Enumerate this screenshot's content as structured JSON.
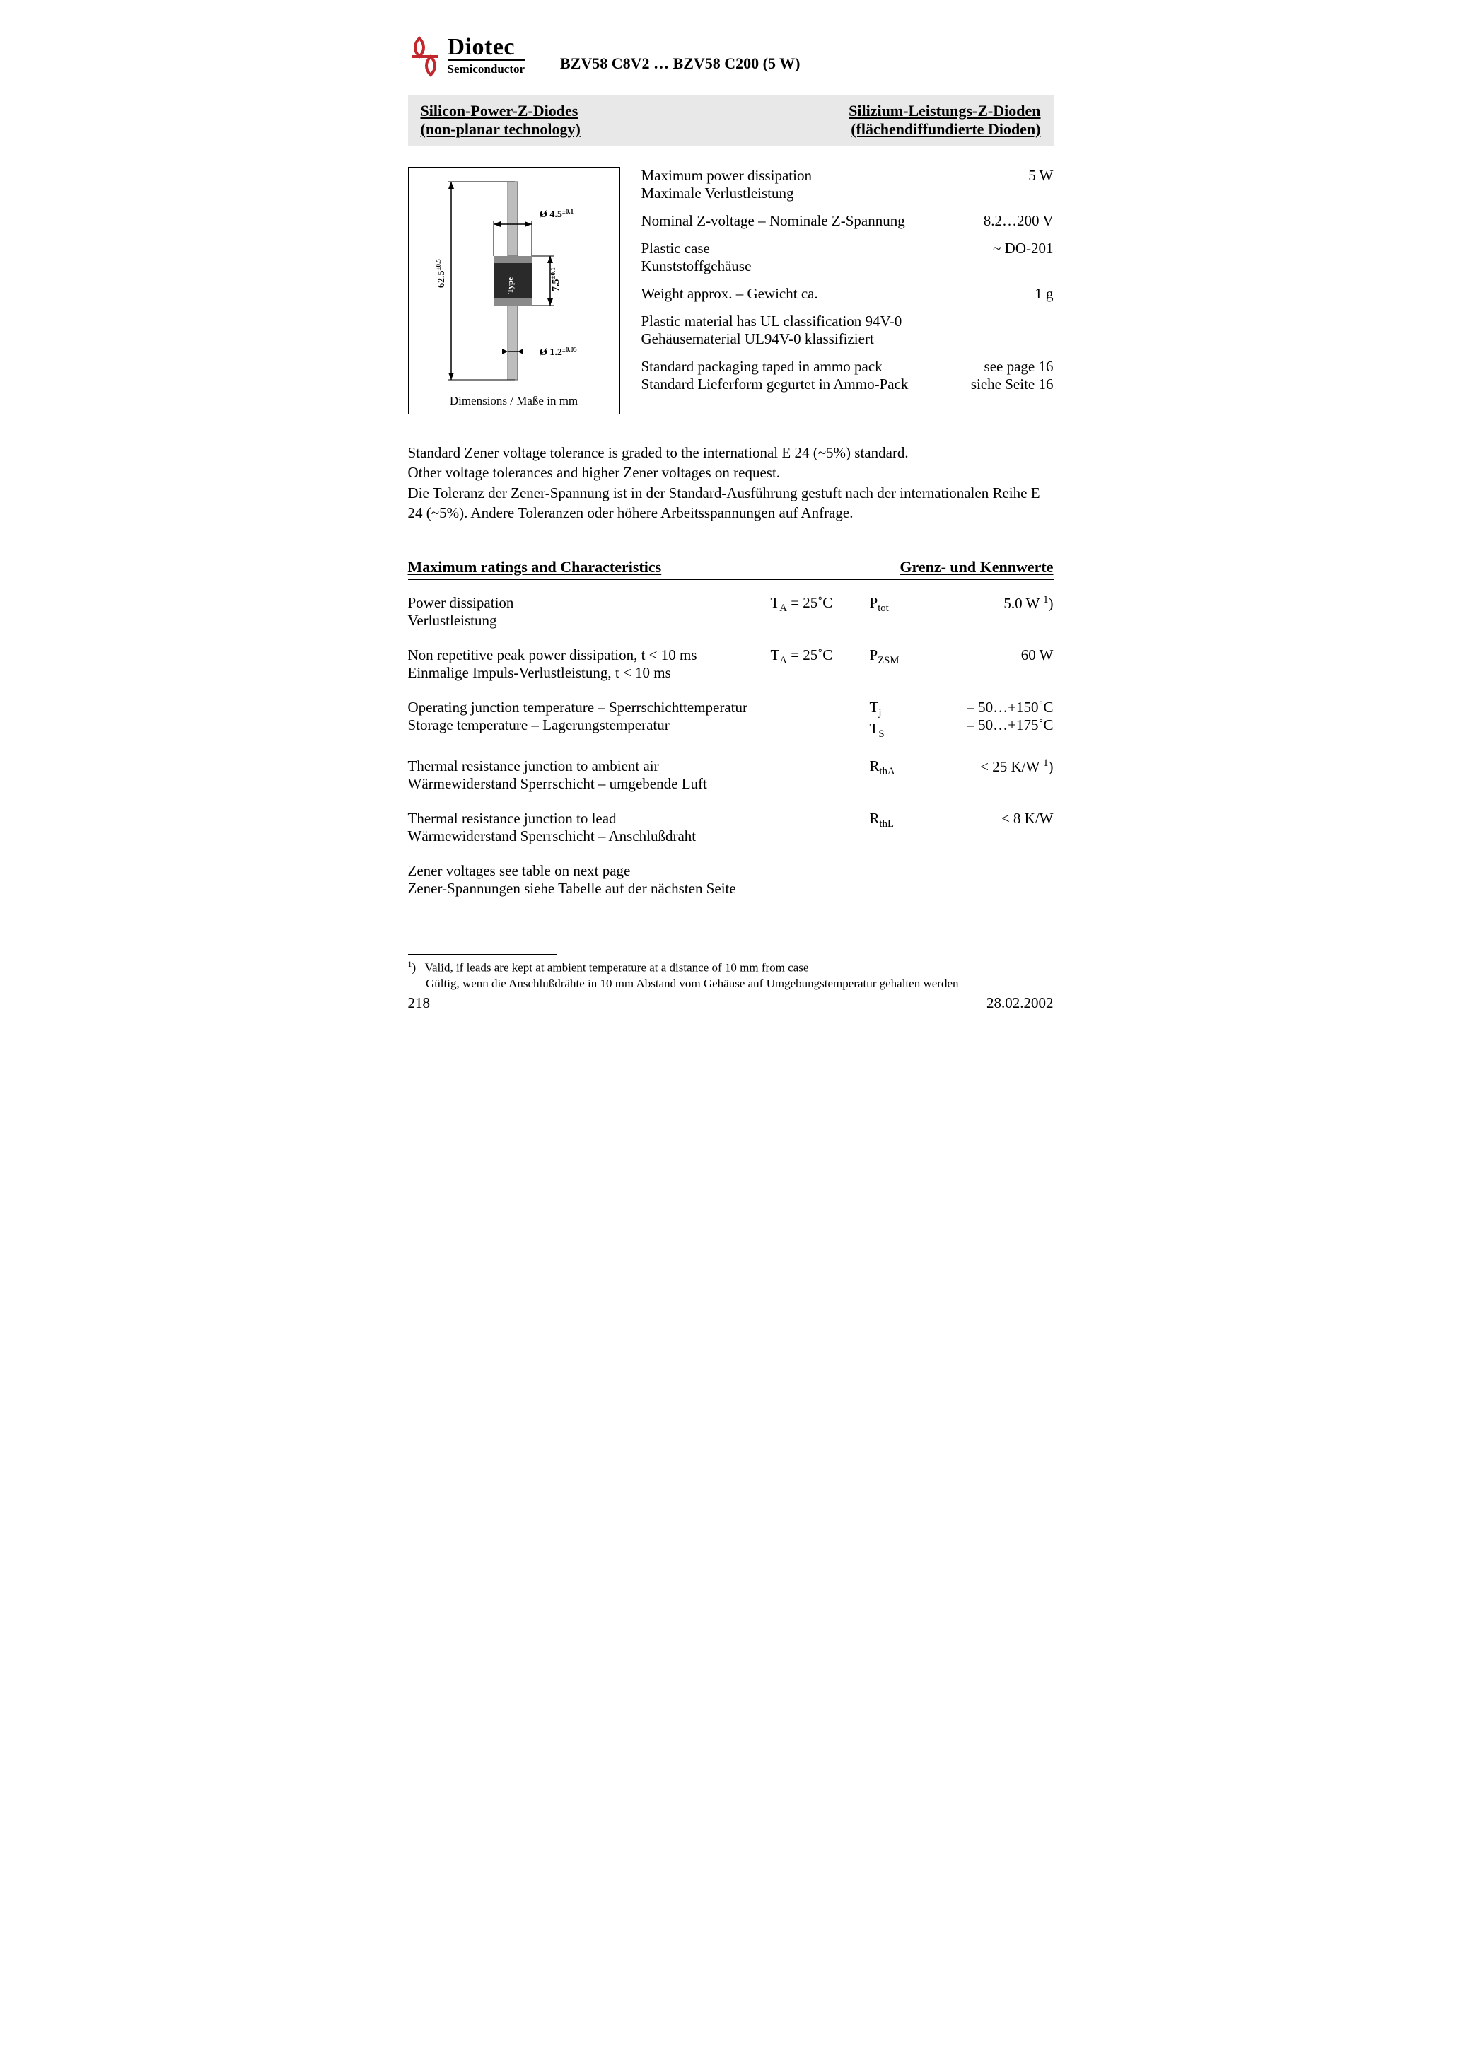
{
  "logo": {
    "name": "Diotec",
    "sub": "Semiconductor",
    "stroke_color": "#c1272d"
  },
  "part_title": "BZV58 C8V2 … BZV58 C200 (5 W)",
  "band": {
    "left_line1": "Silicon-Power-Z-Diodes",
    "left_line2": "(non-planar technology)",
    "right_line1": "Silizium-Leistungs-Z-Dioden",
    "right_line2": "(flächendiffundierte Dioden)"
  },
  "diagram": {
    "caption": "Dimensions / Maße in mm",
    "dim_body_dia": "Ø 4.5",
    "dim_body_dia_tol": "±0.1",
    "dim_lead_dia": "Ø 1.2",
    "dim_lead_dia_tol": "±0.05",
    "dim_total_len": "62.5",
    "dim_total_len_tol": "±0.5",
    "dim_body_len": "7.5",
    "dim_body_len_tol": "±0.1",
    "type_label": "Type",
    "colors": {
      "body": "#2a2a2a",
      "band": "#8a8a8a",
      "lead": "#bdbdbd",
      "arrow": "#000000"
    }
  },
  "specs": [
    {
      "l1": "Maximum power dissipation",
      "l2": "Maximale Verlustleistung",
      "r": "5 W"
    },
    {
      "l1": "Nominal Z-voltage – Nominale Z-Spannung",
      "l2": "",
      "r": "8.2…200 V"
    },
    {
      "l1": "Plastic case",
      "l2": "Kunststoffgehäuse",
      "r": "~ DO-201"
    },
    {
      "l1": "Weight approx. – Gewicht ca.",
      "l2": "",
      "r": "1 g"
    },
    {
      "l1": "Plastic material has UL classification 94V-0",
      "l2": "Gehäusematerial UL94V-0 klassifiziert",
      "r": ""
    },
    {
      "l1": "Standard packaging taped in ammo pack",
      "l2": "Standard Lieferform gegurtet in Ammo-Pack",
      "r": "see page 16",
      "r2": "siehe Seite 16"
    }
  ],
  "body_para": {
    "en1": "Standard Zener voltage tolerance is graded to the international E 24 (~5%) standard.",
    "en2": "Other voltage tolerances and higher Zener voltages on request.",
    "de1": "Die Toleranz der Zener-Spannung ist in der Standard-Ausführung gestuft nach der internationalen Reihe E 24 (~5%). Andere Toleranzen oder höhere Arbeitsspannungen auf Anfrage."
  },
  "ratings_header": {
    "left": "Maximum ratings and Characteristics",
    "right": "Grenz- und Kennwerte"
  },
  "ratings": [
    {
      "desc_en": "Power dissipation",
      "desc_de": "Verlustleistung",
      "cond_html": "T<sub>A</sub> = 25˚C",
      "sym_html": "P<sub>tot</sub>",
      "val_html": "5.0 W <sup>1</sup>)"
    },
    {
      "desc_en": "Non repetitive peak power dissipation, t < 10 ms",
      "desc_de": "Einmalige Impuls-Verlustleistung, t < 10 ms",
      "cond_html": "T<sub>A</sub> = 25˚C",
      "sym_html": "P<sub>ZSM</sub>",
      "val_html": "60 W"
    },
    {
      "desc_en": "Operating junction temperature – Sperrschichttemperatur",
      "desc_de": "Storage temperature – Lagerungstemperatur",
      "cond_html": "",
      "sym_html": "T<sub>j</sub><br>T<sub>S</sub>",
      "val_html": "– 50…+150˚C<br>– 50…+175˚C"
    },
    {
      "desc_en": "Thermal resistance junction to ambient air",
      "desc_de": "Wärmewiderstand Sperrschicht – umgebende Luft",
      "cond_html": "",
      "sym_html": "R<sub>thA</sub>",
      "val_html": "< 25 K/W <sup>1</sup>)"
    },
    {
      "desc_en": "Thermal resistance junction to lead",
      "desc_de": "Wärmewiderstand Sperrschicht – Anschlußdraht",
      "cond_html": "",
      "sym_html": "R<sub>thL</sub>",
      "val_html": "< 8 K/W"
    },
    {
      "desc_en": "Zener voltages see table on next page",
      "desc_de": "Zener-Spannungen siehe Tabelle auf der nächsten Seite",
      "cond_html": "",
      "sym_html": "",
      "val_html": ""
    }
  ],
  "footnote": {
    "marker": "1",
    "en": "Valid, if leads are kept at ambient temperature at a distance of 10 mm from case",
    "de": "Gültig, wenn die Anschlußdrähte in 10 mm Abstand vom Gehäuse auf Umgebungstemperatur gehalten werden"
  },
  "footer": {
    "page": "218",
    "date": "28.02.2002"
  }
}
